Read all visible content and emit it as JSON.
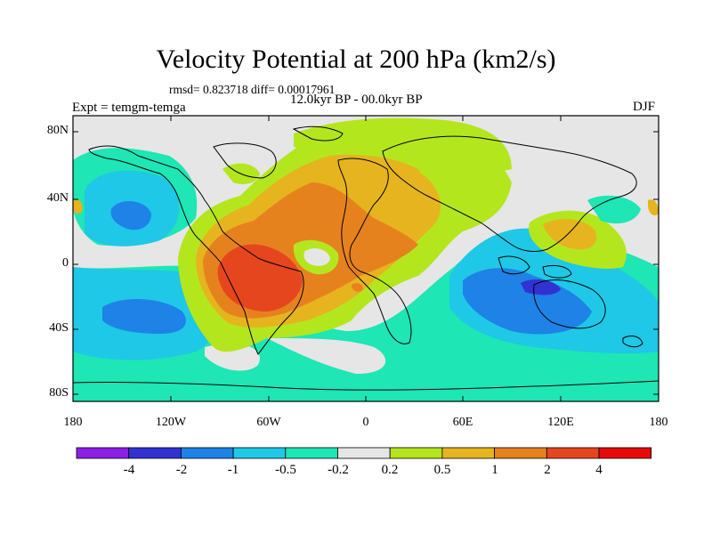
{
  "title": "Velocity Potential at 200 hPa (km2/s)",
  "stats": "rmsd= 0.823718 diff= 0.00017961",
  "period": "12.0kyr BP - 00.0kyr BP",
  "experiment": "Expt = temgm-temga",
  "season": "DJF",
  "lat_labels": [
    "80N",
    "40N",
    "0",
    "40S",
    "80S"
  ],
  "lon_labels": [
    "180",
    "120W",
    "60W",
    "0",
    "60E",
    "120E",
    "180"
  ],
  "colorbar": {
    "labels": [
      "-4",
      "-2",
      "-1",
      "-0.5",
      "-0.2",
      "0.2",
      "0.5",
      "1",
      "2",
      "4"
    ],
    "colors": [
      "#8c1ee6",
      "#3232d2",
      "#1e82e6",
      "#1ec8e6",
      "#1ee6b4",
      "#e6e6e6",
      "#b4e61e",
      "#e6b41e",
      "#e6821e",
      "#e6461e",
      "#e60a0a"
    ]
  }
}
